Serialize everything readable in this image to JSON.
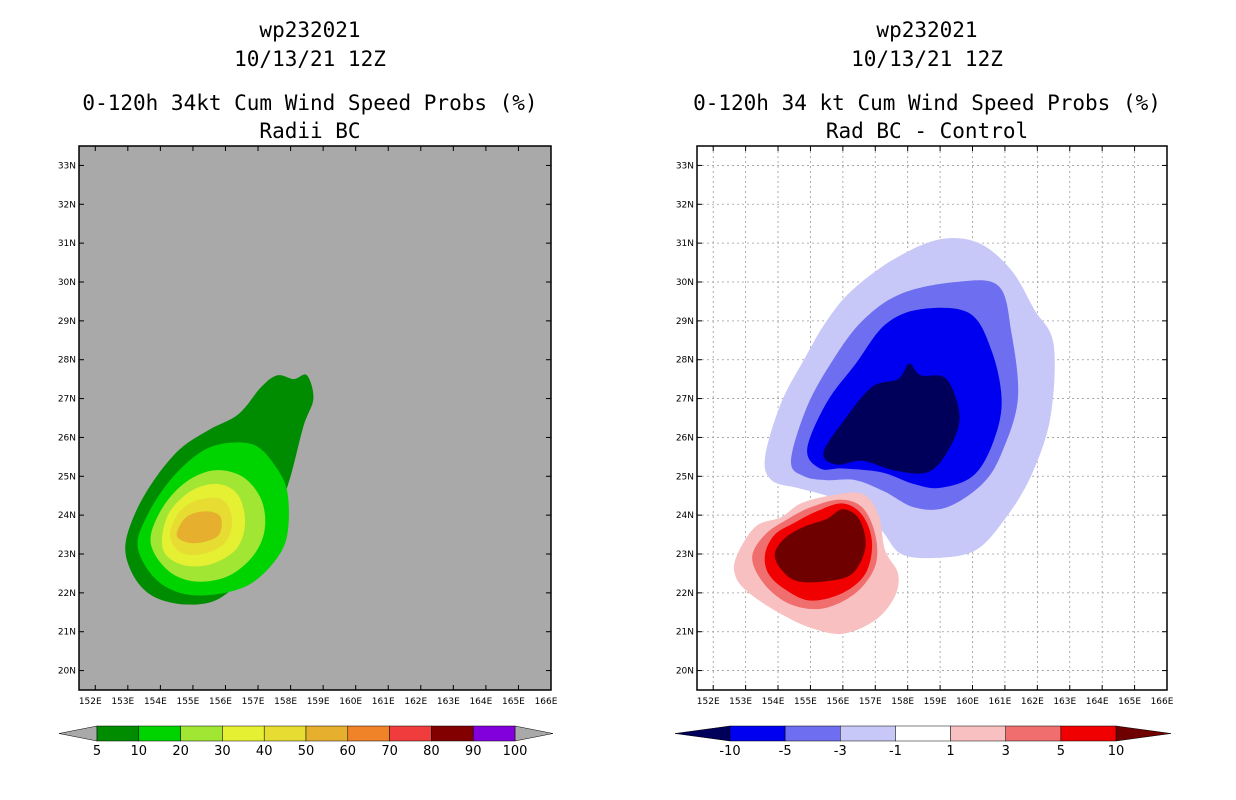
{
  "chart_data": [
    {
      "type": "heatmap",
      "storm": "wp232021",
      "date": "10/13/21 12Z",
      "title": "0-120h 34kt Cum Wind Speed Probs (%)",
      "subtitle": "Radii BC",
      "xlabel": "",
      "ylabel": "",
      "xlim": [
        151.5,
        166.0
      ],
      "ylim": [
        19.5,
        33.5
      ],
      "grid": false,
      "x_ticks": [
        152,
        153,
        154,
        155,
        156,
        157,
        158,
        159,
        160,
        161,
        162,
        163,
        164,
        165,
        166
      ],
      "x_tick_labels": [
        "152E",
        "153E",
        "154E",
        "155E",
        "156E",
        "157E",
        "158E",
        "159E",
        "160E",
        "161E",
        "162E",
        "163E",
        "164E",
        "165E",
        "166E"
      ],
      "y_ticks": [
        20,
        21,
        22,
        23,
        24,
        25,
        26,
        27,
        28,
        29,
        30,
        31,
        32,
        33
      ],
      "y_tick_labels": [
        "20N",
        "21N",
        "22N",
        "23N",
        "24N",
        "25N",
        "26N",
        "27N",
        "28N",
        "29N",
        "30N",
        "31N",
        "32N",
        "33N"
      ],
      "background_color": "#a9a9a9",
      "colorbar": {
        "labels": [
          "5",
          "10",
          "20",
          "30",
          "40",
          "50",
          "60",
          "70",
          "80",
          "90",
          "100"
        ],
        "colors": [
          "#008c00",
          "#00d400",
          "#a0e632",
          "#e6f032",
          "#e6dc32",
          "#e6af2d",
          "#f08228",
          "#f03c3c",
          "#820000",
          "#8200dc"
        ]
      },
      "contours": [
        {
          "level": "5-10",
          "color": "#008c00",
          "points": [
            [
              152.92,
              23.15
            ],
            [
              153.2,
              24.0
            ],
            [
              153.8,
              24.9
            ],
            [
              154.6,
              25.7
            ],
            [
              155.5,
              26.2
            ],
            [
              156.4,
              26.6
            ],
            [
              157.1,
              27.3
            ],
            [
              157.6,
              27.6
            ],
            [
              158.1,
              27.5
            ],
            [
              158.5,
              27.6
            ],
            [
              158.7,
              27.0
            ],
            [
              158.4,
              26.3
            ],
            [
              158.0,
              25.0
            ],
            [
              157.6,
              24.0
            ],
            [
              157.3,
              23.3
            ],
            [
              156.8,
              22.6
            ],
            [
              155.8,
              21.85
            ],
            [
              154.8,
              21.7
            ],
            [
              153.8,
              21.9
            ],
            [
              153.2,
              22.4
            ]
          ]
        },
        {
          "level": "10-20",
          "color": "#00d400",
          "points": [
            [
              153.3,
              23.2
            ],
            [
              153.6,
              24.0
            ],
            [
              154.3,
              24.9
            ],
            [
              155.2,
              25.6
            ],
            [
              156.0,
              25.85
            ],
            [
              156.9,
              25.8
            ],
            [
              157.5,
              25.3
            ],
            [
              157.9,
              24.6
            ],
            [
              157.9,
              23.5
            ],
            [
              157.5,
              22.8
            ],
            [
              156.7,
              22.2
            ],
            [
              155.6,
              21.95
            ],
            [
              154.6,
              22.0
            ],
            [
              153.8,
              22.4
            ]
          ]
        },
        {
          "level": "20-30",
          "color": "#a0e632",
          "points": [
            [
              153.7,
              23.3
            ],
            [
              154.0,
              24.1
            ],
            [
              154.7,
              24.8
            ],
            [
              155.6,
              25.15
            ],
            [
              156.5,
              25.0
            ],
            [
              157.1,
              24.4
            ],
            [
              157.2,
              23.6
            ],
            [
              156.8,
              22.9
            ],
            [
              156.0,
              22.4
            ],
            [
              155.0,
              22.3
            ],
            [
              154.2,
              22.6
            ]
          ]
        },
        {
          "level": "30-40",
          "color": "#e6f032",
          "points": [
            [
              154.05,
              23.4
            ],
            [
              154.3,
              24.1
            ],
            [
              155.0,
              24.65
            ],
            [
              155.8,
              24.8
            ],
            [
              156.4,
              24.5
            ],
            [
              156.6,
              23.8
            ],
            [
              156.35,
              23.15
            ],
            [
              155.6,
              22.75
            ],
            [
              154.8,
              22.7
            ],
            [
              154.2,
              22.95
            ]
          ]
        },
        {
          "level": "40-50",
          "color": "#e6dc32",
          "points": [
            [
              154.3,
              23.5
            ],
            [
              154.6,
              24.1
            ],
            [
              155.2,
              24.4
            ],
            [
              155.9,
              24.4
            ],
            [
              156.2,
              23.9
            ],
            [
              156.0,
              23.3
            ],
            [
              155.3,
              23.0
            ],
            [
              154.6,
              23.05
            ]
          ]
        },
        {
          "level": "50-60",
          "color": "#e6af2d",
          "points": [
            [
              154.5,
              23.5
            ],
            [
              154.8,
              23.95
            ],
            [
              155.4,
              24.1
            ],
            [
              155.85,
              23.95
            ],
            [
              155.8,
              23.5
            ],
            [
              155.3,
              23.3
            ],
            [
              154.8,
              23.3
            ]
          ]
        }
      ]
    },
    {
      "type": "heatmap",
      "storm": "wp232021",
      "date": "10/13/21 12Z",
      "title": "0-120h 34 kt Cum Wind Speed Probs (%)",
      "subtitle": "Rad BC - Control",
      "xlabel": "",
      "ylabel": "",
      "xlim": [
        151.5,
        166.0
      ],
      "ylim": [
        19.5,
        33.5
      ],
      "grid": true,
      "x_ticks": [
        152,
        153,
        154,
        155,
        156,
        157,
        158,
        159,
        160,
        161,
        162,
        163,
        164,
        165,
        166
      ],
      "x_tick_labels": [
        "152E",
        "153E",
        "154E",
        "155E",
        "156E",
        "157E",
        "158E",
        "159E",
        "160E",
        "161E",
        "162E",
        "163E",
        "164E",
        "165E",
        "166E"
      ],
      "y_ticks": [
        20,
        21,
        22,
        23,
        24,
        25,
        26,
        27,
        28,
        29,
        30,
        31,
        32,
        33
      ],
      "y_tick_labels": [
        "20N",
        "21N",
        "22N",
        "23N",
        "24N",
        "25N",
        "26N",
        "27N",
        "28N",
        "29N",
        "30N",
        "31N",
        "32N",
        "33N"
      ],
      "background_color": "#ffffff",
      "colorbar": {
        "labels": [
          "-10",
          "-5",
          "-3",
          "-1",
          "1",
          "3",
          "5",
          "10"
        ],
        "colors": [
          "#00005a",
          "#0000f0",
          "#6e6ef0",
          "#c8c8f8",
          "#ffffff",
          "#f8c0c0",
          "#f06e6e",
          "#f00000",
          "#6e0000"
        ]
      },
      "contours": [
        {
          "level": "-1 to -3",
          "color": "#c8c8f8",
          "points": [
            [
              153.6,
              25.5
            ],
            [
              154.1,
              26.9
            ],
            [
              154.8,
              28.0
            ],
            [
              155.5,
              29.0
            ],
            [
              156.3,
              29.8
            ],
            [
              157.6,
              30.6
            ],
            [
              159.0,
              31.1
            ],
            [
              160.2,
              31.0
            ],
            [
              161.2,
              30.3
            ],
            [
              161.9,
              29.3
            ],
            [
              162.5,
              28.4
            ],
            [
              162.4,
              26.5
            ],
            [
              161.8,
              25.0
            ],
            [
              161.0,
              23.9
            ],
            [
              160.1,
              23.1
            ],
            [
              158.9,
              22.9
            ],
            [
              157.8,
              23.0
            ],
            [
              157.2,
              23.6
            ],
            [
              156.4,
              24.2
            ],
            [
              155.5,
              24.5
            ],
            [
              154.6,
              24.7
            ],
            [
              153.8,
              24.9
            ]
          ]
        },
        {
          "level": "-3 to -5",
          "color": "#6e6ef0",
          "points": [
            [
              154.4,
              25.4
            ],
            [
              154.9,
              26.8
            ],
            [
              155.7,
              28.0
            ],
            [
              156.6,
              29.0
            ],
            [
              157.8,
              29.7
            ],
            [
              159.5,
              30.0
            ],
            [
              160.8,
              29.9
            ],
            [
              161.2,
              28.7
            ],
            [
              161.4,
              27.0
            ],
            [
              160.9,
              25.6
            ],
            [
              160.3,
              24.8
            ],
            [
              159.2,
              24.2
            ],
            [
              158.2,
              24.2
            ],
            [
              157.3,
              24.6
            ],
            [
              156.4,
              24.9
            ],
            [
              155.5,
              24.9
            ],
            [
              154.8,
              25.0
            ]
          ]
        },
        {
          "level": "-5 to -10",
          "color": "#0000f0",
          "points": [
            [
              154.9,
              25.7
            ],
            [
              155.5,
              26.9
            ],
            [
              156.4,
              27.9
            ],
            [
              157.3,
              28.9
            ],
            [
              158.4,
              29.3
            ],
            [
              159.9,
              29.2
            ],
            [
              160.6,
              28.2
            ],
            [
              160.9,
              26.9
            ],
            [
              160.6,
              25.8
            ],
            [
              160.0,
              25.0
            ],
            [
              159.0,
              24.7
            ],
            [
              158.2,
              24.8
            ],
            [
              157.2,
              25.1
            ],
            [
              156.0,
              25.2
            ],
            [
              155.3,
              25.2
            ]
          ]
        },
        {
          "level": "below -10",
          "color": "#00005a",
          "points": [
            [
              155.4,
              25.6
            ],
            [
              156.0,
              26.4
            ],
            [
              156.9,
              27.3
            ],
            [
              157.7,
              27.5
            ],
            [
              158.05,
              27.9
            ],
            [
              158.4,
              27.6
            ],
            [
              159.2,
              27.5
            ],
            [
              159.6,
              26.5
            ],
            [
              159.2,
              25.6
            ],
            [
              158.6,
              25.1
            ],
            [
              157.6,
              25.15
            ],
            [
              156.6,
              25.4
            ],
            [
              155.8,
              25.3
            ]
          ]
        },
        {
          "level": "1 to 3",
          "color": "#f8c0c0",
          "points": [
            [
              152.7,
              22.9
            ],
            [
              153.3,
              23.7
            ],
            [
              154.1,
              23.95
            ],
            [
              154.7,
              24.3
            ],
            [
              155.6,
              24.5
            ],
            [
              156.6,
              24.55
            ],
            [
              157.1,
              24.0
            ],
            [
              157.3,
              23.1
            ],
            [
              157.7,
              22.5
            ],
            [
              157.6,
              21.9
            ],
            [
              157.0,
              21.3
            ],
            [
              156.0,
              20.95
            ],
            [
              155.0,
              21.1
            ],
            [
              154.0,
              21.5
            ],
            [
              153.1,
              22.0
            ],
            [
              152.7,
              22.4
            ]
          ]
        },
        {
          "level": "3 to 5",
          "color": "#f06e6e",
          "points": [
            [
              153.2,
              22.9
            ],
            [
              153.6,
              23.5
            ],
            [
              154.3,
              23.9
            ],
            [
              155.0,
              24.2
            ],
            [
              155.9,
              24.4
            ],
            [
              156.6,
              24.2
            ],
            [
              157.0,
              23.5
            ],
            [
              157.0,
              22.7
            ],
            [
              156.4,
              22.0
            ],
            [
              155.4,
              21.6
            ],
            [
              154.4,
              21.7
            ],
            [
              153.6,
              22.2
            ]
          ]
        },
        {
          "level": "5 to 10",
          "color": "#f00000",
          "points": [
            [
              153.6,
              23.0
            ],
            [
              153.9,
              23.5
            ],
            [
              154.5,
              23.8
            ],
            [
              155.2,
              24.1
            ],
            [
              156.0,
              24.3
            ],
            [
              156.6,
              24.0
            ],
            [
              156.9,
              23.3
            ],
            [
              156.7,
              22.5
            ],
            [
              156.0,
              22.0
            ],
            [
              155.0,
              21.8
            ],
            [
              154.2,
              22.1
            ],
            [
              153.7,
              22.5
            ]
          ]
        },
        {
          "level": "above 10",
          "color": "#6e0000",
          "points": [
            [
              153.9,
              23.0
            ],
            [
              154.2,
              23.4
            ],
            [
              154.8,
              23.7
            ],
            [
              155.5,
              23.9
            ],
            [
              156.0,
              24.15
            ],
            [
              156.5,
              23.9
            ],
            [
              156.7,
              23.2
            ],
            [
              156.3,
              22.5
            ],
            [
              155.5,
              22.3
            ],
            [
              154.6,
              22.3
            ],
            [
              154.1,
              22.6
            ]
          ]
        }
      ]
    }
  ]
}
